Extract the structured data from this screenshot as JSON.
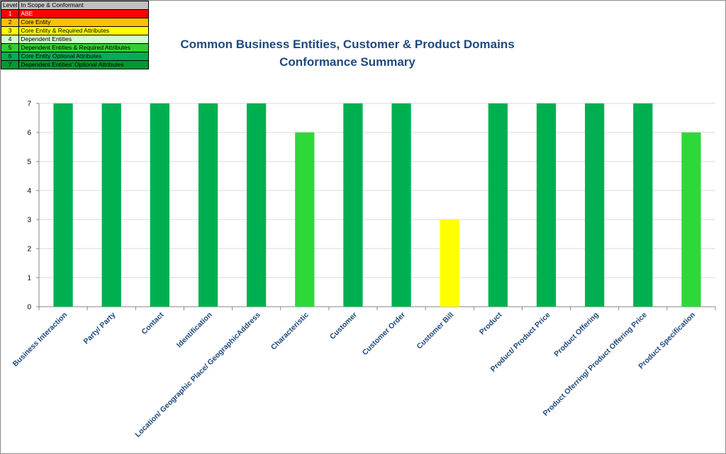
{
  "legend": {
    "header": {
      "level": "Level",
      "desc": "In Scope & Conformant"
    },
    "rows": [
      {
        "level": "1",
        "desc": "ABE",
        "color": "#ff0000",
        "text_color": "#ffffff"
      },
      {
        "level": "2",
        "desc": "Core Entity",
        "color": "#ffc000",
        "text_color": "#000000"
      },
      {
        "level": "3",
        "desc": "Core Entity & Required Attributes",
        "color": "#ffff00",
        "text_color": "#000000"
      },
      {
        "level": "4",
        "desc": "Dependent Entities",
        "color": "#ccffcc",
        "text_color": "#000000"
      },
      {
        "level": "5",
        "desc": "Dependent Entities & Required Attributes",
        "color": "#33cc33",
        "text_color": "#000000"
      },
      {
        "level": "6",
        "desc": "Core Entity Optional Attributes",
        "color": "#00b050",
        "text_color": "#000000"
      },
      {
        "level": "7",
        "desc": "Dependent Entities' Optional Attributes",
        "color": "#009933",
        "text_color": "#000000"
      }
    ]
  },
  "chart_data": {
    "type": "bar",
    "title": "Common Business Entities, Customer & Product Domains",
    "subtitle": "Conformance Summary",
    "xlabel": "",
    "ylabel": "",
    "ylim": [
      0,
      7
    ],
    "yticks": [
      "0",
      "1",
      "2",
      "3",
      "4",
      "5",
      "6",
      "7"
    ],
    "grid": true,
    "categories": [
      "Business Interaction",
      "Party/ Party",
      "Contact",
      "Identification",
      "Location/ Geographic Place/ GeographicAddress",
      "Characteristic",
      "Customer",
      "Customer Order",
      "Customer Bill",
      "Product",
      "Product/ Product Price",
      "Product Offering",
      "Product Oferring/ Product Offering Price",
      "Product Specification"
    ],
    "values": [
      7,
      7,
      7,
      7,
      7,
      6,
      7,
      7,
      3,
      7,
      7,
      7,
      7,
      6
    ],
    "bar_colors": [
      "#00b050",
      "#00b050",
      "#00b050",
      "#00b050",
      "#00b050",
      "#2ed838",
      "#00b050",
      "#00b050",
      "#ffff00",
      "#00b050",
      "#00b050",
      "#00b050",
      "#00b050",
      "#2ed838"
    ],
    "grid_color": "#d9d9d9",
    "axis_color": "#868686"
  }
}
